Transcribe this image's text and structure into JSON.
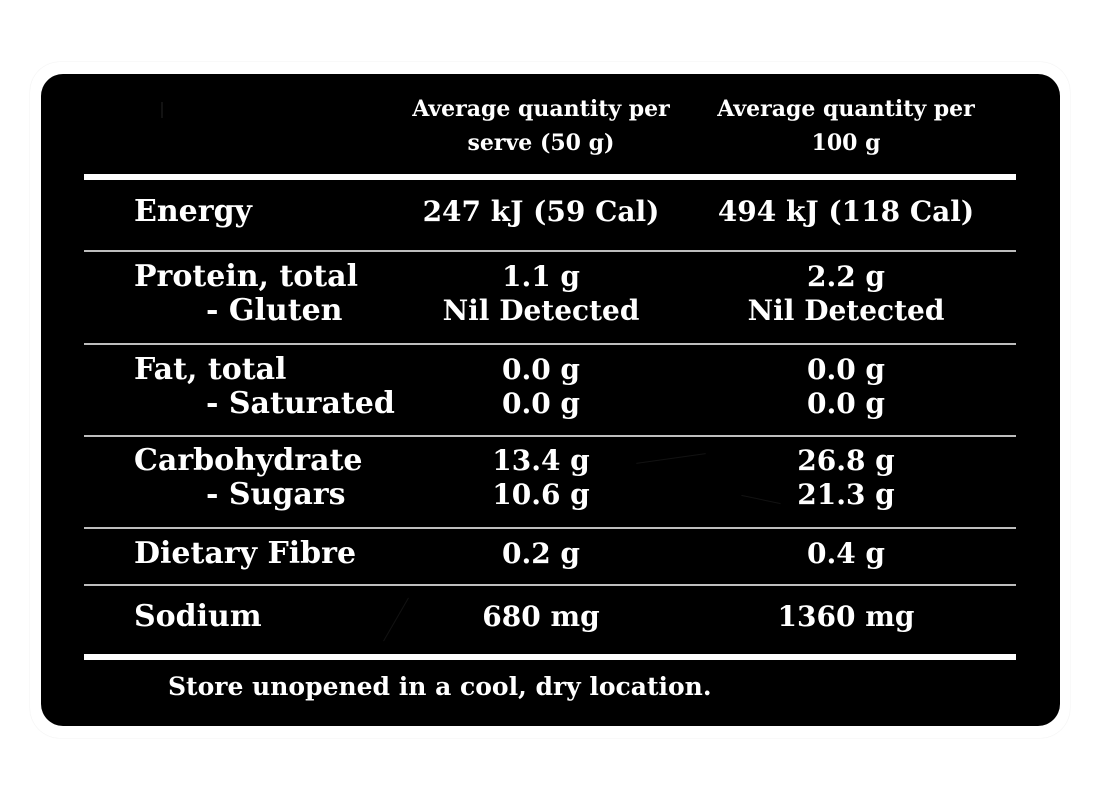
{
  "columns": {
    "per_serve": [
      "Average quantity per",
      "serve (50 g)"
    ],
    "per_100g": [
      "Average quantity per",
      "100 g"
    ]
  },
  "rows": [
    {
      "labels": [
        "Energy"
      ],
      "per_serve": [
        "247 kJ (59 Cal)"
      ],
      "per_100g": [
        "494 kJ (118 Cal)"
      ]
    },
    {
      "labels": [
        "Protein, total",
        "- Gluten"
      ],
      "per_serve": [
        "1.1 g",
        "Nil Detected"
      ],
      "per_100g": [
        "2.2 g",
        "Nil Detected"
      ]
    },
    {
      "labels": [
        "Fat, total",
        "- Saturated"
      ],
      "per_serve": [
        "0.0 g",
        "0.0 g"
      ],
      "per_100g": [
        "0.0 g",
        "0.0 g"
      ]
    },
    {
      "labels": [
        "Carbohydrate",
        "- Sugars"
      ],
      "per_serve": [
        "13.4 g",
        "10.6 g"
      ],
      "per_100g": [
        "26.8 g",
        "21.3 g"
      ]
    },
    {
      "labels": [
        "Dietary Fibre"
      ],
      "per_serve": [
        "0.2 g"
      ],
      "per_100g": [
        "0.4 g"
      ]
    },
    {
      "labels": [
        "Sodium"
      ],
      "per_serve": [
        "680 mg"
      ],
      "per_100g": [
        "1360 mg"
      ]
    }
  ],
  "footer": {
    "storage_note": "Store unopened in a cool, dry location."
  },
  "colors": {
    "panel_background": "#000000",
    "text": "#ffffff",
    "divider": "#bdbdbd"
  }
}
